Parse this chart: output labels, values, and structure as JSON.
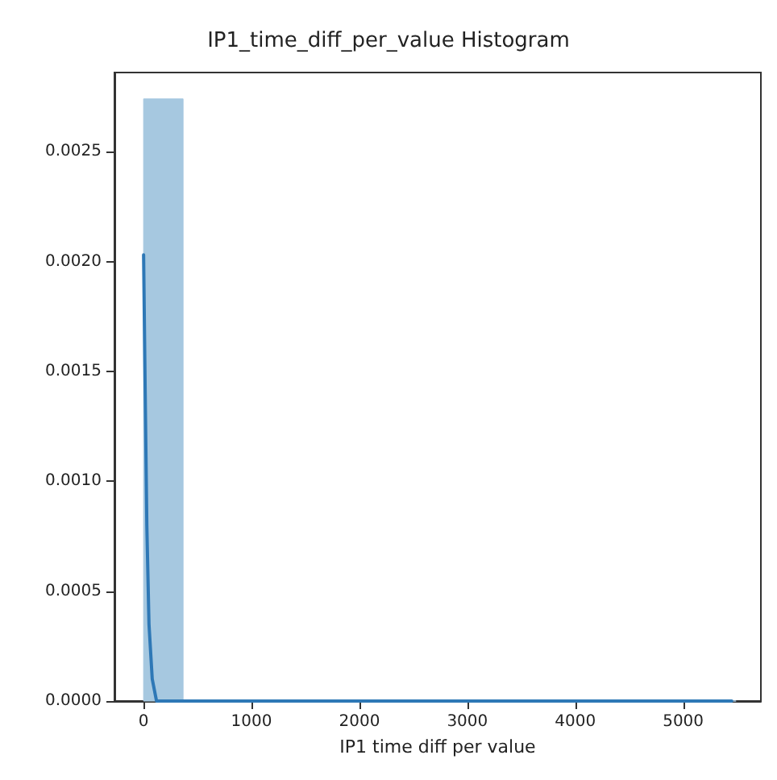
{
  "chart_data": {
    "type": "histogram",
    "title": "IP1_time_diff_per_value Histogram",
    "xlabel": "IP1 time diff per value",
    "bins": [
      0,
      366,
      732,
      1098,
      1464,
      1830,
      2196,
      2562,
      2928,
      3294,
      3660,
      4026,
      4392,
      4758,
      5124,
      5490
    ],
    "values": [
      0.00274,
      0,
      0,
      0,
      0,
      0,
      0,
      0,
      0,
      0,
      0,
      0,
      0,
      0,
      0
    ],
    "color": "#a6c8e0",
    "series": [
      {
        "type": "line",
        "color": "#2e78b6",
        "x": [
          0,
          15,
          30,
          50,
          80,
          120,
          200,
          400,
          1000,
          5450
        ],
        "values": [
          0.00203,
          0.0014,
          0.0008,
          0.00035,
          0.0001,
          0,
          0,
          0,
          0,
          0
        ]
      }
    ],
    "xlim": [
      -270,
      5720
    ],
    "xticks": [
      0,
      1000,
      2000,
      3000,
      4000,
      5000
    ],
    "ylim": [
      0,
      0.00286
    ],
    "yticks": [
      {
        "value": 0,
        "label": "0.0000"
      },
      {
        "value": 0.0005,
        "label": "0.0005"
      },
      {
        "value": 0.001,
        "label": "0.0010"
      },
      {
        "value": 0.0015,
        "label": "0.0015"
      },
      {
        "value": 0.002,
        "label": "0.0020"
      },
      {
        "value": 0.0025,
        "label": "0.0025"
      }
    ],
    "grid": false,
    "marker": "none",
    "line_style": "solid"
  }
}
